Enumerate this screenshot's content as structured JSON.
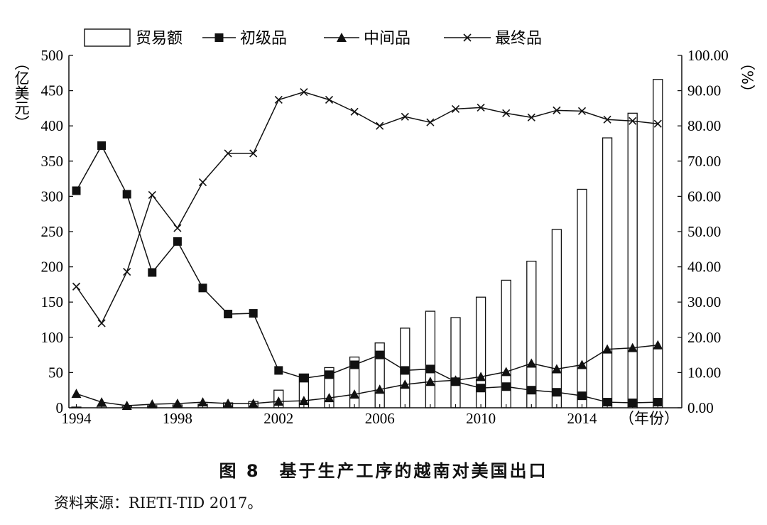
{
  "caption": "图 8　基于生产工序的越南对美国出口",
  "source": "资料来源：RIETI-TID 2017。",
  "chart_data": {
    "type": "bar+line",
    "x": [
      1994,
      1995,
      1996,
      1997,
      1998,
      1999,
      2000,
      2001,
      2002,
      2003,
      2004,
      2005,
      2006,
      2007,
      2008,
      2009,
      2010,
      2011,
      2012,
      2013,
      2014,
      2015,
      2016,
      2017
    ],
    "xticks": [
      "1994",
      "1998",
      "2002",
      "2006",
      "2010",
      "2014"
    ],
    "x_unit_label": "（年份）",
    "y_left": {
      "label": "（亿美元）",
      "ylim": [
        0,
        500
      ],
      "ticks": [
        "0",
        "50",
        "100",
        "150",
        "200",
        "250",
        "300",
        "350",
        "400",
        "450",
        "500"
      ]
    },
    "y_right": {
      "label": "（%）",
      "ylim": [
        0,
        100
      ],
      "ticks": [
        "0.00",
        "10.00",
        "20.00",
        "30.00",
        "40.00",
        "50.00",
        "60.00",
        "70.00",
        "80.00",
        "90.00",
        "100.00"
      ]
    },
    "bars": {
      "name": "贸易额",
      "axis": "left",
      "values": [
        1,
        2,
        2,
        3,
        4,
        5,
        7,
        9,
        25,
        48,
        57,
        72,
        92,
        113,
        137,
        128,
        157,
        181,
        208,
        253,
        310,
        383,
        418,
        466
      ]
    },
    "series": [
      {
        "name": "初级品",
        "marker": "square",
        "axis": "right",
        "values": [
          61.6,
          74.4,
          60.6,
          38.4,
          47.2,
          34.0,
          26.6,
          26.8,
          10.6,
          8.4,
          9.4,
          12.2,
          15.0,
          10.6,
          11.0,
          7.4,
          5.6,
          6.0,
          5.0,
          4.4,
          3.4,
          1.6,
          1.4,
          1.6
        ]
      },
      {
        "name": "中间品",
        "marker": "triangle",
        "axis": "right",
        "values": [
          4.0,
          1.6,
          0.6,
          1.0,
          1.2,
          1.6,
          1.2,
          1.2,
          1.8,
          2.0,
          2.8,
          3.8,
          5.2,
          6.6,
          7.4,
          7.8,
          8.8,
          10.2,
          12.6,
          11.0,
          12.2,
          16.6,
          17.0,
          17.8
        ]
      },
      {
        "name": "最终品",
        "marker": "x",
        "axis": "right",
        "values": [
          34.4,
          24.0,
          38.6,
          60.4,
          51.0,
          64.0,
          72.2,
          72.2,
          87.4,
          89.6,
          87.4,
          84.0,
          80.0,
          82.6,
          81.0,
          84.8,
          85.2,
          83.6,
          82.4,
          84.4,
          84.2,
          81.8,
          81.4,
          80.6
        ]
      }
    ]
  }
}
